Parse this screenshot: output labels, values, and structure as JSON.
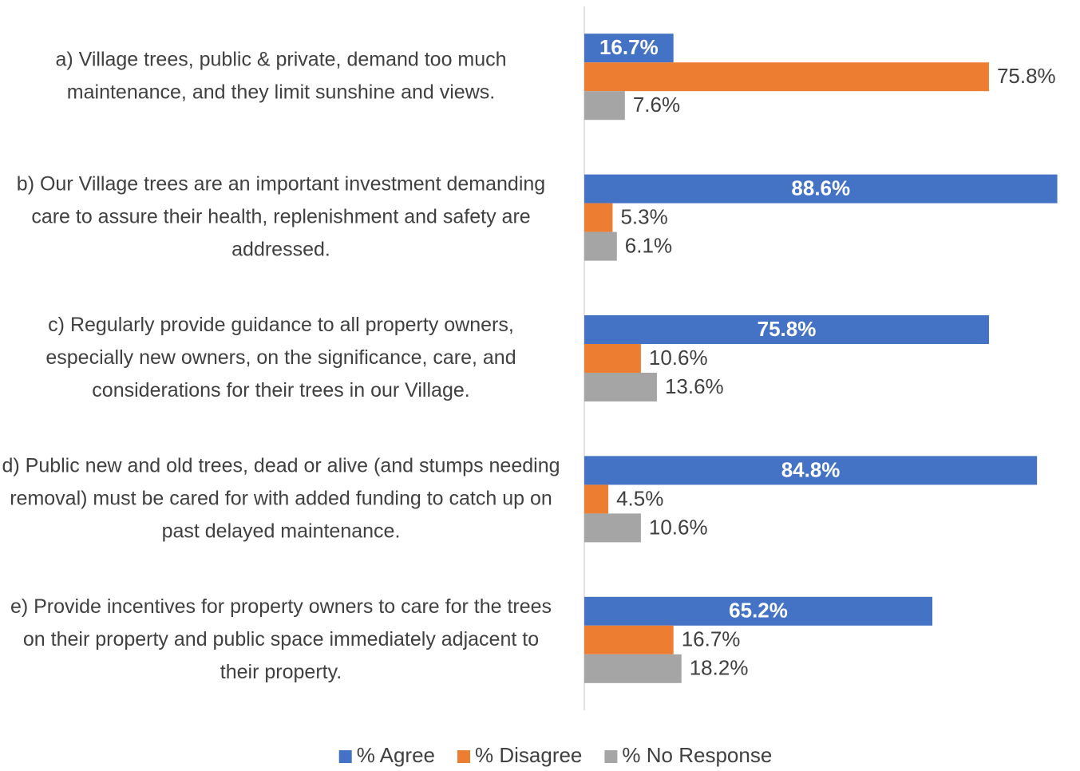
{
  "chart_data": {
    "type": "bar",
    "orientation": "horizontal",
    "categories": [
      "a) Village trees, public & private, demand too much maintenance, and they limit sunshine and views.",
      "b) Our Village trees are an important investment demanding care to assure their health, replenishment and safety are addressed.",
      "c) Regularly provide guidance to all property owners, especially new owners, on the significance, care, and considerations for their trees in our Village.",
      "d) Public new and old trees, dead or alive (and stumps needing removal) must be cared for with added funding to catch up on past delayed maintenance.",
      "e) Provide incentives for property owners to care for the trees on their property and public space immediately adjacent to their property."
    ],
    "series": [
      {
        "name": "% Agree",
        "color": "#4472c4",
        "values": [
          16.7,
          88.6,
          75.8,
          84.8,
          65.2
        ],
        "value_labels": [
          "16.7%",
          "88.6%",
          "75.8%",
          "84.8%",
          "65.2%"
        ]
      },
      {
        "name": "% Disagree",
        "color": "#ed7d31",
        "values": [
          75.8,
          5.3,
          10.6,
          4.5,
          16.7
        ],
        "value_labels": [
          "75.8%",
          "5.3%",
          "10.6%",
          "4.5%",
          "16.7%"
        ]
      },
      {
        "name": "% No Response",
        "color": "#a5a5a5",
        "values": [
          7.6,
          6.1,
          13.6,
          10.6,
          18.2
        ],
        "value_labels": [
          "7.6%",
          "6.1%",
          "13.6%",
          "10.6%",
          "18.2%"
        ]
      }
    ],
    "xlim": [
      0,
      93
    ],
    "legend": "bottom"
  }
}
